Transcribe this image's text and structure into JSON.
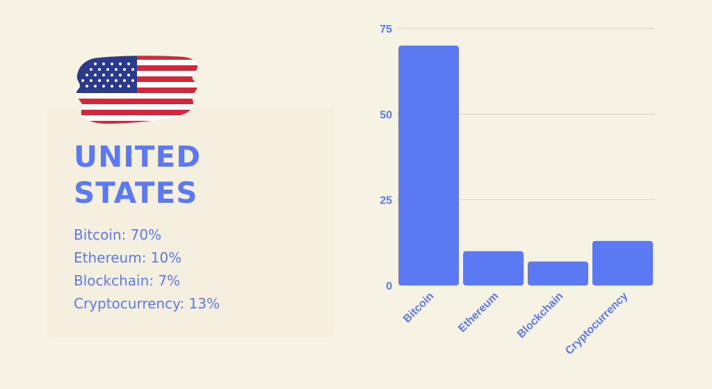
{
  "page": {
    "country_line1": "UNITED",
    "country_line2": "STATES",
    "flag_icon": "usa-flag-icon",
    "accent_color": "#5a79f2",
    "stats": [
      "Bitcoin: 70%",
      "Ethereum: 10%",
      "Blockchain: 7%",
      "Cryptocurrency: 13%"
    ]
  },
  "chart_data": {
    "type": "bar",
    "categories": [
      "Bitcoin",
      "Ethereum",
      "Blockchain",
      "Cryptocurrency"
    ],
    "values": [
      70,
      10,
      7,
      13
    ],
    "ylim": [
      0,
      75
    ],
    "yticks": [
      0,
      25,
      50,
      75
    ],
    "grid": true,
    "bar_color": "#5a79f2",
    "title": "",
    "xlabel": "",
    "ylabel": ""
  }
}
